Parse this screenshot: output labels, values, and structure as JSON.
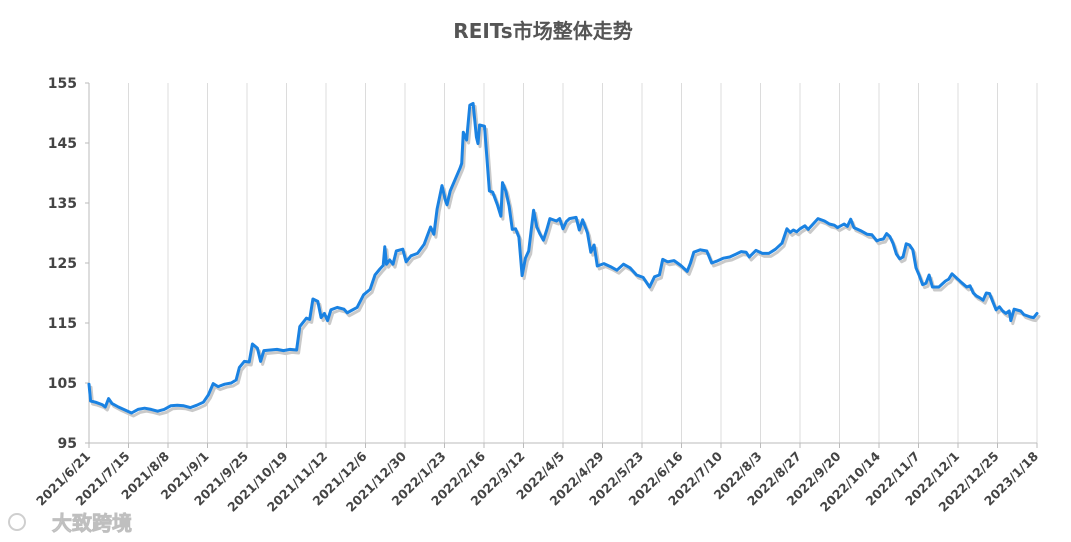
{
  "chart_data": {
    "type": "line",
    "title": "REITs市场整体走势",
    "xlabel": "",
    "ylabel": "",
    "ylim": [
      95,
      155
    ],
    "yticks": [
      95,
      105,
      115,
      125,
      135,
      145,
      155
    ],
    "grid": "vertical",
    "legend": "none",
    "line_color": "#1a82e2",
    "x_tick_labels": [
      "2021/6/21",
      "2021/7/15",
      "2021/8/8",
      "2021/9/1",
      "2021/9/25",
      "2021/10/19",
      "2021/11/12",
      "2021/12/6",
      "2021/12/30",
      "2022/1/23",
      "2022/2/16",
      "2022/3/12",
      "2022/4/5",
      "2022/4/29",
      "2022/5/23",
      "2022/6/16",
      "2022/7/10",
      "2022/8/3",
      "2022/8/27",
      "2022/9/20",
      "2022/10/14",
      "2022/11/7",
      "2022/12/1",
      "2022/12/25",
      "2023/1/18"
    ],
    "series": [
      {
        "points": [
          [
            "2021/6/21",
            104.8
          ],
          [
            "2021/6/22",
            102.0
          ],
          [
            "2021/6/25",
            101.8
          ],
          [
            "2021/6/29",
            101.4
          ],
          [
            "2021/7/1",
            101.0
          ],
          [
            "2021/7/3",
            102.4
          ],
          [
            "2021/7/5",
            101.6
          ],
          [
            "2021/7/9",
            101.0
          ],
          [
            "2021/7/13",
            100.5
          ],
          [
            "2021/7/17",
            100.0
          ],
          [
            "2021/7/21",
            100.6
          ],
          [
            "2021/7/25",
            100.8
          ],
          [
            "2021/7/29",
            100.6
          ],
          [
            "2021/8/2",
            100.3
          ],
          [
            "2021/8/6",
            100.6
          ],
          [
            "2021/8/10",
            101.2
          ],
          [
            "2021/8/14",
            101.3
          ],
          [
            "2021/8/18",
            101.2
          ],
          [
            "2021/8/22",
            100.9
          ],
          [
            "2021/8/26",
            101.3
          ],
          [
            "2021/8/30",
            101.8
          ],
          [
            "2021/9/2",
            103.0
          ],
          [
            "2021/9/5",
            104.9
          ],
          [
            "2021/9/8",
            104.4
          ],
          [
            "2021/9/12",
            104.8
          ],
          [
            "2021/9/16",
            105.0
          ],
          [
            "2021/9/19",
            105.5
          ],
          [
            "2021/9/21",
            107.6
          ],
          [
            "2021/9/24",
            108.6
          ],
          [
            "2021/9/27",
            108.5
          ],
          [
            "2021/9/29",
            111.5
          ],
          [
            "2021/10/2",
            110.8
          ],
          [
            "2021/10/4",
            108.6
          ],
          [
            "2021/10/6",
            110.4
          ],
          [
            "2021/10/10",
            110.5
          ],
          [
            "2021/10/14",
            110.6
          ],
          [
            "2021/10/18",
            110.4
          ],
          [
            "2021/10/22",
            110.6
          ],
          [
            "2021/10/26",
            110.5
          ],
          [
            "2021/10/28",
            114.4
          ],
          [
            "2021/11/1",
            115.8
          ],
          [
            "2021/11/3",
            115.6
          ],
          [
            "2021/11/5",
            119.0
          ],
          [
            "2021/11/8",
            118.6
          ],
          [
            "2021/11/10",
            115.9
          ],
          [
            "2021/11/12",
            116.6
          ],
          [
            "2021/11/14",
            115.4
          ],
          [
            "2021/11/16",
            117.2
          ],
          [
            "2021/11/20",
            117.6
          ],
          [
            "2021/11/24",
            117.3
          ],
          [
            "2021/11/26",
            116.7
          ],
          [
            "2021/11/28",
            117.0
          ],
          [
            "2021/12/2",
            117.6
          ],
          [
            "2021/12/6",
            119.7
          ],
          [
            "2021/12/10",
            120.6
          ],
          [
            "2021/12/13",
            123.0
          ],
          [
            "2021/12/16",
            124.0
          ],
          [
            "2021/12/18",
            124.6
          ],
          [
            "2021/12/19",
            127.7
          ],
          [
            "2021/12/20",
            124.8
          ],
          [
            "2021/12/22",
            125.5
          ],
          [
            "2021/12/24",
            124.8
          ],
          [
            "2021/12/26",
            127.0
          ],
          [
            "2021/12/30",
            127.3
          ],
          [
            "2022/1/1",
            125.2
          ],
          [
            "2022/1/4",
            126.2
          ],
          [
            "2022/1/8",
            126.6
          ],
          [
            "2022/1/12",
            128.1
          ],
          [
            "2022/1/16",
            131.0
          ],
          [
            "2022/1/18",
            129.8
          ],
          [
            "2022/1/20",
            134.0
          ],
          [
            "2022/1/23",
            137.9
          ],
          [
            "2022/1/25",
            135.5
          ],
          [
            "2022/1/26",
            134.7
          ],
          [
            "2022/1/28",
            137.0
          ],
          [
            "2022/2/3",
            140.8
          ],
          [
            "2022/2/4",
            141.6
          ],
          [
            "2022/2/5",
            146.8
          ],
          [
            "2022/2/7",
            145.5
          ],
          [
            "2022/2/9",
            151.3
          ],
          [
            "2022/2/11",
            151.6
          ],
          [
            "2022/2/13",
            146.0
          ],
          [
            "2022/2/14",
            144.9
          ],
          [
            "2022/2/15",
            148.0
          ],
          [
            "2022/2/18",
            147.8
          ],
          [
            "2022/2/21",
            137.0
          ],
          [
            "2022/2/23",
            136.8
          ],
          [
            "2022/2/26",
            134.6
          ],
          [
            "2022/2/28",
            132.8
          ],
          [
            "2022/3/1",
            138.4
          ],
          [
            "2022/3/3",
            137.0
          ],
          [
            "2022/3/5",
            134.5
          ],
          [
            "2022/3/7",
            130.6
          ],
          [
            "2022/3/9",
            130.7
          ],
          [
            "2022/3/11",
            129.3
          ],
          [
            "2022/3/13",
            122.9
          ],
          [
            "2022/3/15",
            125.8
          ],
          [
            "2022/3/17",
            127.0
          ],
          [
            "2022/3/20",
            133.8
          ],
          [
            "2022/3/22",
            131.0
          ],
          [
            "2022/3/24",
            129.8
          ],
          [
            "2022/3/26",
            128.8
          ],
          [
            "2022/3/28",
            130.5
          ],
          [
            "2022/3/30",
            132.4
          ],
          [
            "2022/4/3",
            132.0
          ],
          [
            "2022/4/5",
            132.4
          ],
          [
            "2022/4/7",
            130.7
          ],
          [
            "2022/4/9",
            131.9
          ],
          [
            "2022/4/11",
            132.4
          ],
          [
            "2022/4/15",
            132.6
          ],
          [
            "2022/4/17",
            130.5
          ],
          [
            "2022/4/19",
            132.2
          ],
          [
            "2022/4/22",
            130.0
          ],
          [
            "2022/4/24",
            126.8
          ],
          [
            "2022/4/26",
            128.0
          ],
          [
            "2022/4/28",
            124.5
          ],
          [
            "2022/5/2",
            124.9
          ],
          [
            "2022/5/6",
            124.4
          ],
          [
            "2022/5/10",
            123.8
          ],
          [
            "2022/5/14",
            124.8
          ],
          [
            "2022/5/18",
            124.2
          ],
          [
            "2022/5/22",
            123.0
          ],
          [
            "2022/5/26",
            122.6
          ],
          [
            "2022/5/30",
            121.0
          ],
          [
            "2022/6/2",
            122.7
          ],
          [
            "2022/6/5",
            123.0
          ],
          [
            "2022/6/7",
            125.6
          ],
          [
            "2022/6/10",
            125.2
          ],
          [
            "2022/6/14",
            125.4
          ],
          [
            "2022/6/18",
            124.6
          ],
          [
            "2022/6/22",
            123.6
          ],
          [
            "2022/6/24",
            125.0
          ],
          [
            "2022/6/26",
            126.8
          ],
          [
            "2022/6/30",
            127.2
          ],
          [
            "2022/7/4",
            127.0
          ],
          [
            "2022/7/7",
            125.0
          ],
          [
            "2022/7/10",
            125.3
          ],
          [
            "2022/7/14",
            125.8
          ],
          [
            "2022/7/18",
            126.0
          ],
          [
            "2022/7/22",
            126.5
          ],
          [
            "2022/7/25",
            126.9
          ],
          [
            "2022/7/28",
            126.8
          ],
          [
            "2022/7/30",
            126.0
          ],
          [
            "2022/8/3",
            127.1
          ],
          [
            "2022/8/7",
            126.6
          ],
          [
            "2022/8/11",
            126.6
          ],
          [
            "2022/8/15",
            127.3
          ],
          [
            "2022/8/19",
            128.3
          ],
          [
            "2022/8/22",
            130.7
          ],
          [
            "2022/8/24",
            130.1
          ],
          [
            "2022/8/26",
            130.5
          ],
          [
            "2022/8/28",
            130.2
          ],
          [
            "2022/8/30",
            130.7
          ],
          [
            "2022/9/2",
            131.2
          ],
          [
            "2022/9/4",
            130.6
          ],
          [
            "2022/9/8",
            131.8
          ],
          [
            "2022/9/10",
            132.4
          ],
          [
            "2022/9/14",
            132.0
          ],
          [
            "2022/9/17",
            131.5
          ],
          [
            "2022/9/20",
            131.3
          ],
          [
            "2022/9/22",
            130.9
          ],
          [
            "2022/9/26",
            131.5
          ],
          [
            "2022/9/28",
            131.1
          ],
          [
            "2022/9/30",
            132.3
          ],
          [
            "2022/10/2",
            130.9
          ],
          [
            "2022/10/6",
            130.4
          ],
          [
            "2022/10/10",
            129.8
          ],
          [
            "2022/10/13",
            129.7
          ],
          [
            "2022/10/16",
            128.7
          ],
          [
            "2022/10/18",
            128.9
          ],
          [
            "2022/10/20",
            129.0
          ],
          [
            "2022/10/22",
            129.9
          ],
          [
            "2022/10/24",
            129.4
          ],
          [
            "2022/10/26",
            128.2
          ],
          [
            "2022/10/28",
            126.5
          ],
          [
            "2022/10/30",
            125.7
          ],
          [
            "2022/11/1",
            126.0
          ],
          [
            "2022/11/3",
            128.2
          ],
          [
            "2022/11/5",
            128.0
          ],
          [
            "2022/11/7",
            127.2
          ],
          [
            "2022/11/9",
            124.2
          ],
          [
            "2022/11/11",
            122.9
          ],
          [
            "2022/11/13",
            121.4
          ],
          [
            "2022/11/15",
            121.6
          ],
          [
            "2022/11/17",
            123.0
          ],
          [
            "2022/11/19",
            121.0
          ],
          [
            "2022/11/21",
            121.0
          ],
          [
            "2022/11/23",
            121.0
          ],
          [
            "2022/11/25",
            121.5
          ],
          [
            "2022/11/27",
            122.0
          ],
          [
            "2022/11/29",
            122.3
          ],
          [
            "2022/12/1",
            123.2
          ],
          [
            "2022/12/3",
            122.7
          ],
          [
            "2022/12/7",
            121.7
          ],
          [
            "2022/12/10",
            121.0
          ],
          [
            "2022/12/12",
            121.2
          ],
          [
            "2022/12/14",
            120.0
          ],
          [
            "2022/12/16",
            119.5
          ],
          [
            "2022/12/18",
            119.2
          ],
          [
            "2022/12/20",
            118.8
          ],
          [
            "2022/12/22",
            120.0
          ],
          [
            "2022/12/24",
            119.9
          ],
          [
            "2022/12/26",
            118.5
          ],
          [
            "2022/12/28",
            117.2
          ],
          [
            "2022/12/30",
            117.7
          ],
          [
            "2023/1/1",
            117.0
          ],
          [
            "2023/1/3",
            116.6
          ],
          [
            "2023/1/5",
            117.0
          ],
          [
            "2023/1/6",
            115.4
          ],
          [
            "2023/1/8",
            117.3
          ],
          [
            "2023/1/12",
            117.0
          ],
          [
            "2023/1/14",
            116.4
          ],
          [
            "2023/1/18",
            116.0
          ],
          [
            "2023/1/20",
            115.9
          ],
          [
            "2023/1/22",
            116.6
          ]
        ]
      }
    ]
  },
  "watermark": {
    "text": "大致跨境"
  }
}
